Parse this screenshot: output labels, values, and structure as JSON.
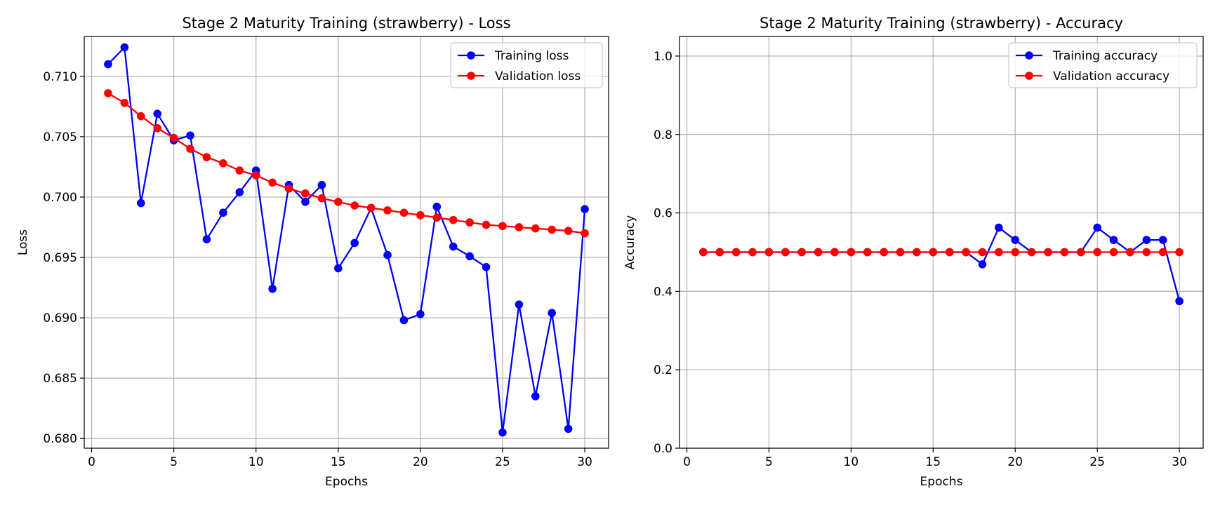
{
  "chart_data": [
    {
      "type": "line",
      "title": "Stage 2 Maturity Training (strawberry) - Loss",
      "xlabel": "Epochs",
      "ylabel": "Loss",
      "xlim": [
        -0.45,
        31.45
      ],
      "ylim": [
        0.6792,
        0.7133
      ],
      "xticks": [
        0,
        5,
        10,
        15,
        20,
        25,
        30
      ],
      "xtick_labels": [
        "0",
        "5",
        "10",
        "15",
        "20",
        "25",
        "30"
      ],
      "yticks": [
        0.68,
        0.685,
        0.69,
        0.695,
        0.7,
        0.705,
        0.71
      ],
      "ytick_labels": [
        "0.680",
        "0.685",
        "0.690",
        "0.695",
        "0.700",
        "0.705",
        "0.710"
      ],
      "grid": true,
      "legend_position": "top-right",
      "x": [
        1,
        2,
        3,
        4,
        5,
        6,
        7,
        8,
        9,
        10,
        11,
        12,
        13,
        14,
        15,
        16,
        17,
        18,
        19,
        20,
        21,
        22,
        23,
        24,
        25,
        26,
        27,
        28,
        29,
        30
      ],
      "series": [
        {
          "name": "Training loss",
          "color": "#0000ff",
          "values": [
            0.711,
            0.7124,
            0.6995,
            0.7069,
            0.7047,
            0.7051,
            0.6965,
            0.6987,
            0.7004,
            0.7022,
            0.6924,
            0.701,
            0.6996,
            0.701,
            0.6941,
            0.6962,
            0.6991,
            0.6952,
            0.6898,
            0.6903,
            0.6992,
            0.6959,
            0.6951,
            0.6942,
            0.6805,
            0.6911,
            0.6835,
            0.6904,
            0.6808,
            0.699
          ]
        },
        {
          "name": "Validation loss",
          "color": "#ff0000",
          "values": [
            0.7086,
            0.7078,
            0.7067,
            0.7057,
            0.7049,
            0.704,
            0.7033,
            0.7028,
            0.7022,
            0.7018,
            0.7012,
            0.7007,
            0.7003,
            0.6999,
            0.6996,
            0.6993,
            0.6991,
            0.6989,
            0.6987,
            0.6985,
            0.6983,
            0.6981,
            0.6979,
            0.6977,
            0.6976,
            0.6975,
            0.6974,
            0.6973,
            0.6972,
            0.697
          ]
        }
      ]
    },
    {
      "type": "line",
      "title": "Stage 2 Maturity Training (strawberry) - Accuracy",
      "xlabel": "Epochs",
      "ylabel": "Accuracy",
      "xlim": [
        -0.45,
        31.45
      ],
      "ylim": [
        0.0,
        1.05
      ],
      "xticks": [
        0,
        5,
        10,
        15,
        20,
        25,
        30
      ],
      "xtick_labels": [
        "0",
        "5",
        "10",
        "15",
        "20",
        "25",
        "30"
      ],
      "yticks": [
        0.0,
        0.2,
        0.4,
        0.6,
        0.8,
        1.0
      ],
      "ytick_labels": [
        "0.0",
        "0.2",
        "0.4",
        "0.6",
        "0.8",
        "1.0"
      ],
      "grid": true,
      "legend_position": "top-right",
      "x": [
        1,
        2,
        3,
        4,
        5,
        6,
        7,
        8,
        9,
        10,
        11,
        12,
        13,
        14,
        15,
        16,
        17,
        18,
        19,
        20,
        21,
        22,
        23,
        24,
        25,
        26,
        27,
        28,
        29,
        30
      ],
      "series": [
        {
          "name": "Training accuracy",
          "color": "#0000ff",
          "values": [
            0.5,
            0.5,
            0.5,
            0.5,
            0.5,
            0.5,
            0.5,
            0.5,
            0.5,
            0.5,
            0.5,
            0.5,
            0.5,
            0.5,
            0.5,
            0.5,
            0.5,
            0.469,
            0.5625,
            0.531,
            0.5,
            0.5,
            0.5,
            0.5,
            0.5625,
            0.531,
            0.5,
            0.531,
            0.531,
            0.375
          ]
        },
        {
          "name": "Validation accuracy",
          "color": "#ff0000",
          "values": [
            0.5,
            0.5,
            0.5,
            0.5,
            0.5,
            0.5,
            0.5,
            0.5,
            0.5,
            0.5,
            0.5,
            0.5,
            0.5,
            0.5,
            0.5,
            0.5,
            0.5,
            0.5,
            0.5,
            0.5,
            0.5,
            0.5,
            0.5,
            0.5,
            0.5,
            0.5,
            0.5,
            0.5,
            0.5,
            0.5
          ]
        }
      ]
    }
  ]
}
